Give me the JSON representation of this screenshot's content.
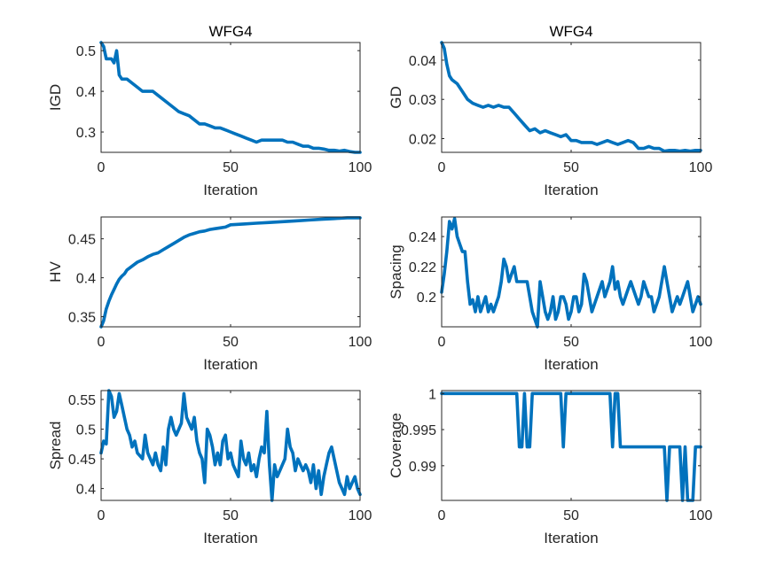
{
  "chart_data": [
    {
      "type": "line",
      "title": "WFG4",
      "xlabel": "Iteration",
      "ylabel": "IGD",
      "xlim": [
        0,
        100
      ],
      "ylim": [
        0.25,
        0.52
      ],
      "xticks": [
        0,
        50,
        100
      ],
      "yticks": [
        0.3,
        0.4,
        0.5
      ],
      "ytick_labels": [
        "0.3",
        "0.4",
        "0.5"
      ],
      "series": [
        {
          "x": [
            0,
            1,
            2,
            3,
            4,
            5,
            6,
            7,
            8,
            10,
            12,
            14,
            16,
            18,
            20,
            22,
            24,
            26,
            28,
            30,
            32,
            34,
            36,
            38,
            40,
            42,
            44,
            46,
            48,
            50,
            52,
            54,
            56,
            58,
            60,
            62,
            64,
            66,
            68,
            70,
            72,
            74,
            76,
            78,
            80,
            82,
            84,
            86,
            88,
            90,
            92,
            94,
            96,
            98,
            100
          ],
          "values": [
            0.52,
            0.51,
            0.48,
            0.48,
            0.48,
            0.47,
            0.5,
            0.44,
            0.43,
            0.43,
            0.42,
            0.41,
            0.4,
            0.4,
            0.4,
            0.39,
            0.38,
            0.37,
            0.36,
            0.35,
            0.345,
            0.34,
            0.33,
            0.32,
            0.32,
            0.315,
            0.31,
            0.31,
            0.305,
            0.3,
            0.295,
            0.29,
            0.285,
            0.28,
            0.275,
            0.28,
            0.28,
            0.28,
            0.28,
            0.28,
            0.275,
            0.275,
            0.27,
            0.265,
            0.265,
            0.26,
            0.26,
            0.258,
            0.255,
            0.255,
            0.253,
            0.255,
            0.252,
            0.25,
            0.25
          ]
        }
      ]
    },
    {
      "type": "line",
      "title": "WFG4",
      "xlabel": "Iteration",
      "ylabel": "GD",
      "xlim": [
        0,
        100
      ],
      "ylim": [
        0.0165,
        0.0445
      ],
      "xticks": [
        0,
        50,
        100
      ],
      "yticks": [
        0.02,
        0.03,
        0.04
      ],
      "ytick_labels": [
        "0.02",
        "0.03",
        "0.04"
      ],
      "series": [
        {
          "x": [
            0,
            1,
            2,
            3,
            4,
            5,
            6,
            8,
            10,
            12,
            14,
            16,
            18,
            20,
            22,
            24,
            26,
            28,
            30,
            32,
            34,
            36,
            38,
            40,
            42,
            44,
            46,
            48,
            50,
            52,
            54,
            56,
            58,
            60,
            62,
            64,
            66,
            68,
            70,
            72,
            74,
            76,
            78,
            80,
            82,
            84,
            86,
            88,
            90,
            92,
            94,
            96,
            98,
            100
          ],
          "values": [
            0.0445,
            0.043,
            0.039,
            0.036,
            0.035,
            0.0345,
            0.034,
            0.032,
            0.03,
            0.029,
            0.0285,
            0.028,
            0.0285,
            0.028,
            0.0285,
            0.028,
            0.028,
            0.0265,
            0.025,
            0.0235,
            0.022,
            0.0225,
            0.0215,
            0.022,
            0.0215,
            0.021,
            0.0205,
            0.021,
            0.0195,
            0.0195,
            0.019,
            0.019,
            0.019,
            0.0185,
            0.019,
            0.0195,
            0.019,
            0.0185,
            0.019,
            0.0195,
            0.019,
            0.0175,
            0.0175,
            0.018,
            0.0175,
            0.0175,
            0.0168,
            0.017,
            0.017,
            0.0168,
            0.017,
            0.0168,
            0.017,
            0.017
          ]
        }
      ]
    },
    {
      "type": "line",
      "title": "",
      "xlabel": "Iteration",
      "ylabel": "HV",
      "xlim": [
        0,
        100
      ],
      "ylim": [
        0.337,
        0.478
      ],
      "xticks": [
        0,
        50,
        100
      ],
      "yticks": [
        0.35,
        0.4,
        0.45
      ],
      "ytick_labels": [
        "0.35",
        "0.4",
        "0.45"
      ],
      "series": [
        {
          "x": [
            0,
            1,
            2,
            3,
            4,
            5,
            6,
            7,
            8,
            9,
            10,
            12,
            14,
            16,
            18,
            20,
            22,
            24,
            26,
            28,
            30,
            32,
            34,
            36,
            38,
            40,
            42,
            44,
            46,
            48,
            50,
            55,
            60,
            65,
            70,
            75,
            80,
            85,
            90,
            95,
            100
          ],
          "values": [
            0.337,
            0.345,
            0.36,
            0.37,
            0.378,
            0.385,
            0.392,
            0.398,
            0.402,
            0.405,
            0.41,
            0.415,
            0.42,
            0.423,
            0.427,
            0.43,
            0.432,
            0.436,
            0.44,
            0.444,
            0.448,
            0.452,
            0.455,
            0.457,
            0.459,
            0.46,
            0.462,
            0.463,
            0.464,
            0.465,
            0.468,
            0.469,
            0.47,
            0.471,
            0.472,
            0.473,
            0.474,
            0.475,
            0.476,
            0.477,
            0.477
          ]
        }
      ]
    },
    {
      "type": "line",
      "title": "",
      "xlabel": "Iteration",
      "ylabel": "Spacing",
      "xlim": [
        0,
        100
      ],
      "ylim": [
        0.18,
        0.253
      ],
      "xticks": [
        0,
        50,
        100
      ],
      "yticks": [
        0.2,
        0.22,
        0.24
      ],
      "ytick_labels": [
        "0.2",
        "0.22",
        "0.24"
      ],
      "series": [
        {
          "x": [
            0,
            1,
            2,
            3,
            4,
            5,
            6,
            7,
            8,
            9,
            10,
            11,
            12,
            13,
            14,
            15,
            16,
            17,
            18,
            19,
            20,
            21,
            22,
            23,
            24,
            25,
            26,
            27,
            28,
            29,
            30,
            31,
            32,
            33,
            34,
            35,
            36,
            37,
            38,
            39,
            40,
            41,
            42,
            43,
            44,
            45,
            46,
            47,
            48,
            49,
            50,
            51,
            52,
            53,
            54,
            55,
            56,
            57,
            58,
            59,
            60,
            61,
            62,
            63,
            64,
            65,
            66,
            67,
            68,
            69,
            70,
            71,
            72,
            73,
            74,
            75,
            76,
            77,
            78,
            79,
            80,
            81,
            82,
            83,
            84,
            85,
            86,
            87,
            88,
            89,
            90,
            91,
            92,
            93,
            94,
            95,
            96,
            97,
            98,
            99,
            100
          ],
          "values": [
            0.203,
            0.215,
            0.23,
            0.25,
            0.245,
            0.252,
            0.24,
            0.235,
            0.23,
            0.23,
            0.21,
            0.195,
            0.198,
            0.19,
            0.2,
            0.19,
            0.195,
            0.2,
            0.19,
            0.195,
            0.19,
            0.195,
            0.2,
            0.21,
            0.225,
            0.22,
            0.21,
            0.215,
            0.22,
            0.21,
            0.21,
            0.21,
            0.21,
            0.21,
            0.2,
            0.19,
            0.185,
            0.18,
            0.21,
            0.2,
            0.19,
            0.185,
            0.19,
            0.2,
            0.185,
            0.19,
            0.2,
            0.2,
            0.195,
            0.185,
            0.19,
            0.2,
            0.2,
            0.19,
            0.195,
            0.215,
            0.21,
            0.2,
            0.19,
            0.195,
            0.2,
            0.205,
            0.21,
            0.2,
            0.205,
            0.21,
            0.22,
            0.205,
            0.21,
            0.2,
            0.195,
            0.2,
            0.205,
            0.21,
            0.205,
            0.2,
            0.195,
            0.2,
            0.21,
            0.205,
            0.2,
            0.2,
            0.19,
            0.195,
            0.2,
            0.21,
            0.22,
            0.21,
            0.2,
            0.19,
            0.195,
            0.2,
            0.195,
            0.2,
            0.205,
            0.21,
            0.2,
            0.19,
            0.195,
            0.2,
            0.195
          ]
        }
      ]
    },
    {
      "type": "line",
      "title": "",
      "xlabel": "Iteration",
      "ylabel": "Spread",
      "xlim": [
        0,
        100
      ],
      "ylim": [
        0.38,
        0.565
      ],
      "xticks": [
        0,
        50,
        100
      ],
      "yticks": [
        0.4,
        0.45,
        0.5,
        0.55
      ],
      "ytick_labels": [
        "0.4",
        "0.45",
        "0.5",
        "0.55"
      ],
      "series": [
        {
          "x": [
            0,
            1,
            2,
            3,
            4,
            5,
            6,
            7,
            8,
            9,
            10,
            11,
            12,
            13,
            14,
            15,
            16,
            17,
            18,
            19,
            20,
            21,
            22,
            23,
            24,
            25,
            26,
            27,
            28,
            29,
            30,
            31,
            32,
            33,
            34,
            35,
            36,
            37,
            38,
            39,
            40,
            41,
            42,
            43,
            44,
            45,
            46,
            47,
            48,
            49,
            50,
            51,
            52,
            53,
            54,
            55,
            56,
            57,
            58,
            59,
            60,
            61,
            62,
            63,
            64,
            65,
            66,
            67,
            68,
            69,
            70,
            71,
            72,
            73,
            74,
            75,
            76,
            77,
            78,
            79,
            80,
            81,
            82,
            83,
            84,
            85,
            86,
            87,
            88,
            89,
            90,
            91,
            92,
            93,
            94,
            95,
            96,
            97,
            98,
            99,
            100
          ],
          "values": [
            0.46,
            0.48,
            0.475,
            0.565,
            0.555,
            0.52,
            0.53,
            0.56,
            0.54,
            0.52,
            0.5,
            0.49,
            0.47,
            0.48,
            0.46,
            0.455,
            0.45,
            0.49,
            0.46,
            0.45,
            0.44,
            0.46,
            0.44,
            0.43,
            0.47,
            0.44,
            0.5,
            0.52,
            0.5,
            0.49,
            0.5,
            0.51,
            0.56,
            0.52,
            0.51,
            0.5,
            0.52,
            0.48,
            0.46,
            0.45,
            0.41,
            0.5,
            0.49,
            0.47,
            0.44,
            0.46,
            0.44,
            0.48,
            0.49,
            0.45,
            0.46,
            0.44,
            0.43,
            0.42,
            0.48,
            0.45,
            0.44,
            0.46,
            0.43,
            0.44,
            0.42,
            0.45,
            0.47,
            0.46,
            0.53,
            0.44,
            0.38,
            0.44,
            0.42,
            0.43,
            0.44,
            0.45,
            0.5,
            0.47,
            0.46,
            0.43,
            0.45,
            0.44,
            0.43,
            0.44,
            0.43,
            0.41,
            0.44,
            0.4,
            0.43,
            0.39,
            0.42,
            0.44,
            0.46,
            0.47,
            0.45,
            0.43,
            0.41,
            0.4,
            0.39,
            0.42,
            0.4,
            0.41,
            0.42,
            0.4,
            0.39
          ]
        }
      ]
    },
    {
      "type": "line",
      "title": "",
      "xlabel": "Iteration",
      "ylabel": "Coverage",
      "xlim": [
        0,
        100
      ],
      "ylim": [
        0.9852,
        1.0004
      ],
      "xticks": [
        0,
        50,
        100
      ],
      "yticks": [
        0.99,
        0.995,
        1.0
      ],
      "ytick_labels": [
        "0.99",
        "0.995",
        "1"
      ],
      "series": [
        {
          "x": [
            0,
            29,
            30,
            31,
            32,
            33,
            34,
            35,
            36,
            37,
            46,
            47,
            48,
            65,
            66,
            67,
            68,
            69,
            70,
            71,
            72,
            86,
            87,
            88,
            92,
            93,
            94,
            95,
            96,
            97,
            98,
            99,
            100
          ],
          "values": [
            1,
            1,
            0.9926,
            0.9926,
            1,
            0.9926,
            0.9926,
            1,
            1,
            1,
            1,
            0.9926,
            1,
            1,
            0.9926,
            1,
            1,
            0.9926,
            0.9926,
            0.9926,
            0.9926,
            0.9926,
            0.9852,
            0.9926,
            0.9926,
            0.9852,
            0.9926,
            0.9852,
            0.9852,
            0.9852,
            0.9926,
            0.9926,
            0.9926
          ]
        }
      ]
    }
  ]
}
